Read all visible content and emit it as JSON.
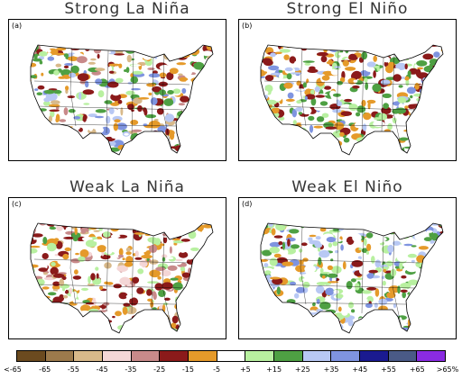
{
  "panels": [
    {
      "title": "Strong La Niña",
      "label": "(a)"
    },
    {
      "title": "Strong El Niño",
      "label": "(b)"
    },
    {
      "title": "Weak La Niña",
      "label": "(c)"
    },
    {
      "title": "Weak El Niño",
      "label": "(d)"
    }
  ],
  "colorbar": {
    "colors": [
      "#6b4a1f",
      "#9c7a4c",
      "#d8b98a",
      "#f4d6d6",
      "#c88a8a",
      "#8b1a1a",
      "#e59a2a",
      "#ffffff",
      "#b8f0a0",
      "#4ea043",
      "#b8c8f4",
      "#7f94e0",
      "#1a1a90",
      "#4a5a86",
      "#8a2be2"
    ],
    "tick_labels": [
      "<-65",
      "-65",
      "-55",
      "-45",
      "-35",
      "-25",
      "-15",
      "-5",
      "+5",
      "+15",
      "+25",
      "+35",
      "+45",
      "+55",
      "+65",
      ">65%"
    ]
  }
}
